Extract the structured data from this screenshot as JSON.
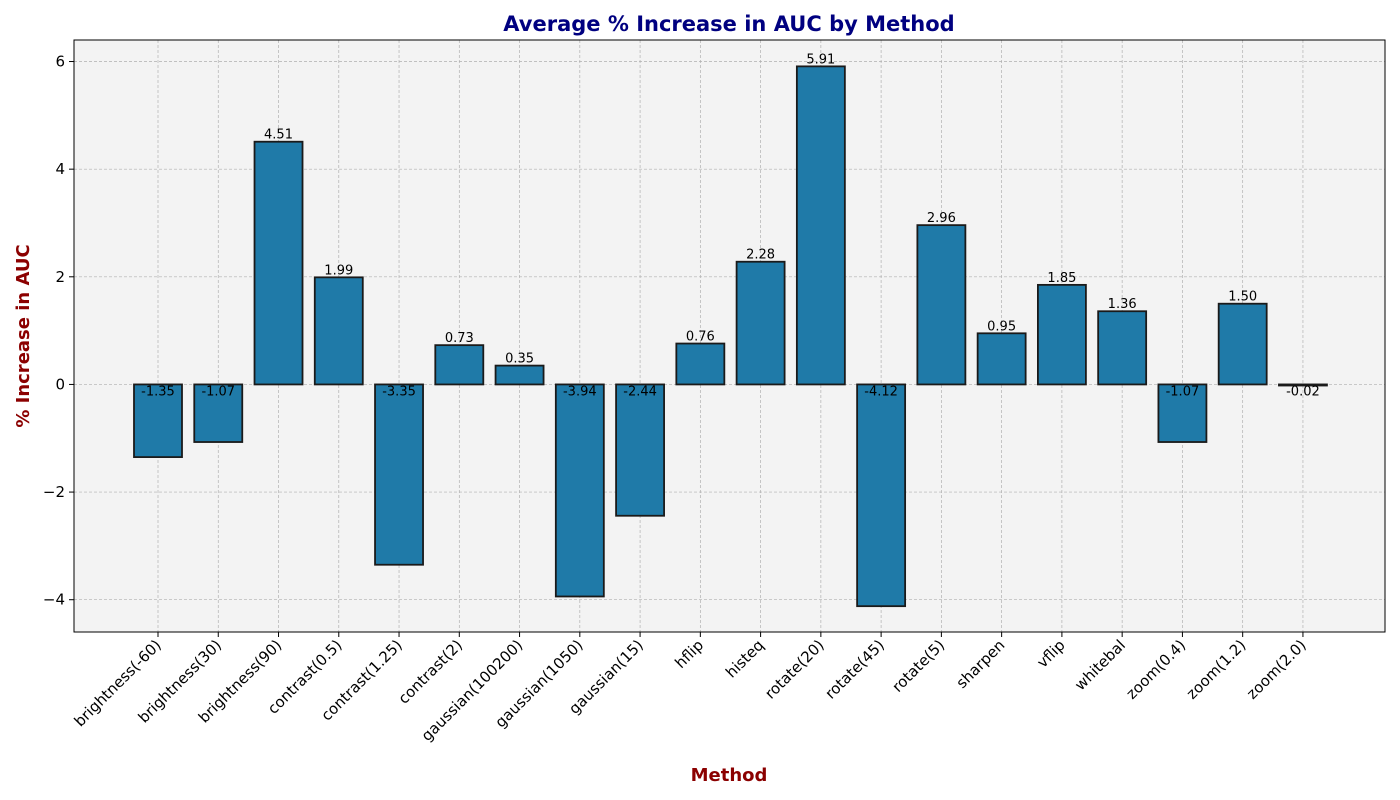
{
  "chart_data": {
    "type": "bar",
    "title": "Average % Increase in AUC by Method",
    "xlabel": "Method",
    "ylabel": "% Increase in AUC",
    "categories": [
      "brightness(-60)",
      "brightness(30)",
      "brightness(90)",
      "contrast(0.5)",
      "contrast(1.25)",
      "contrast(2)",
      "gaussian(100200)",
      "gaussian(1050)",
      "gaussian(15)",
      "hflip",
      "histeq",
      "rotate(20)",
      "rotate(45)",
      "rotate(5)",
      "sharpen",
      "vflip",
      "whitebal",
      "zoom(0.4)",
      "zoom(1.2)",
      "zoom(2.0)"
    ],
    "values": [
      -1.35,
      -1.07,
      4.51,
      1.99,
      -3.35,
      0.73,
      0.35,
      -3.94,
      -2.44,
      0.76,
      2.28,
      5.91,
      -4.12,
      2.96,
      0.95,
      1.85,
      1.36,
      -1.07,
      1.5,
      -0.02
    ],
    "value_labels": [
      "-1.35",
      "-1.07",
      "4.51",
      "1.99",
      "-3.35",
      "0.73",
      "0.35",
      "-3.94",
      "-2.44",
      "0.76",
      "2.28",
      "5.91",
      "-4.12",
      "2.96",
      "0.95",
      "1.85",
      "1.36",
      "-1.07",
      "1.50",
      "-0.02"
    ],
    "ylim": [
      -4.6,
      6.4
    ],
    "yticks": [
      -4,
      -2,
      0,
      2,
      4,
      6
    ],
    "ytick_labels": [
      "−4",
      "−2",
      "0",
      "2",
      "4",
      "6"
    ],
    "grid": true,
    "colors": {
      "bar_fill": "#1f7aa8",
      "bar_edge": "#1a1a1a",
      "plot_background": "#f3f3f3",
      "title": "#000080",
      "axis_label": "#8b0000"
    }
  }
}
